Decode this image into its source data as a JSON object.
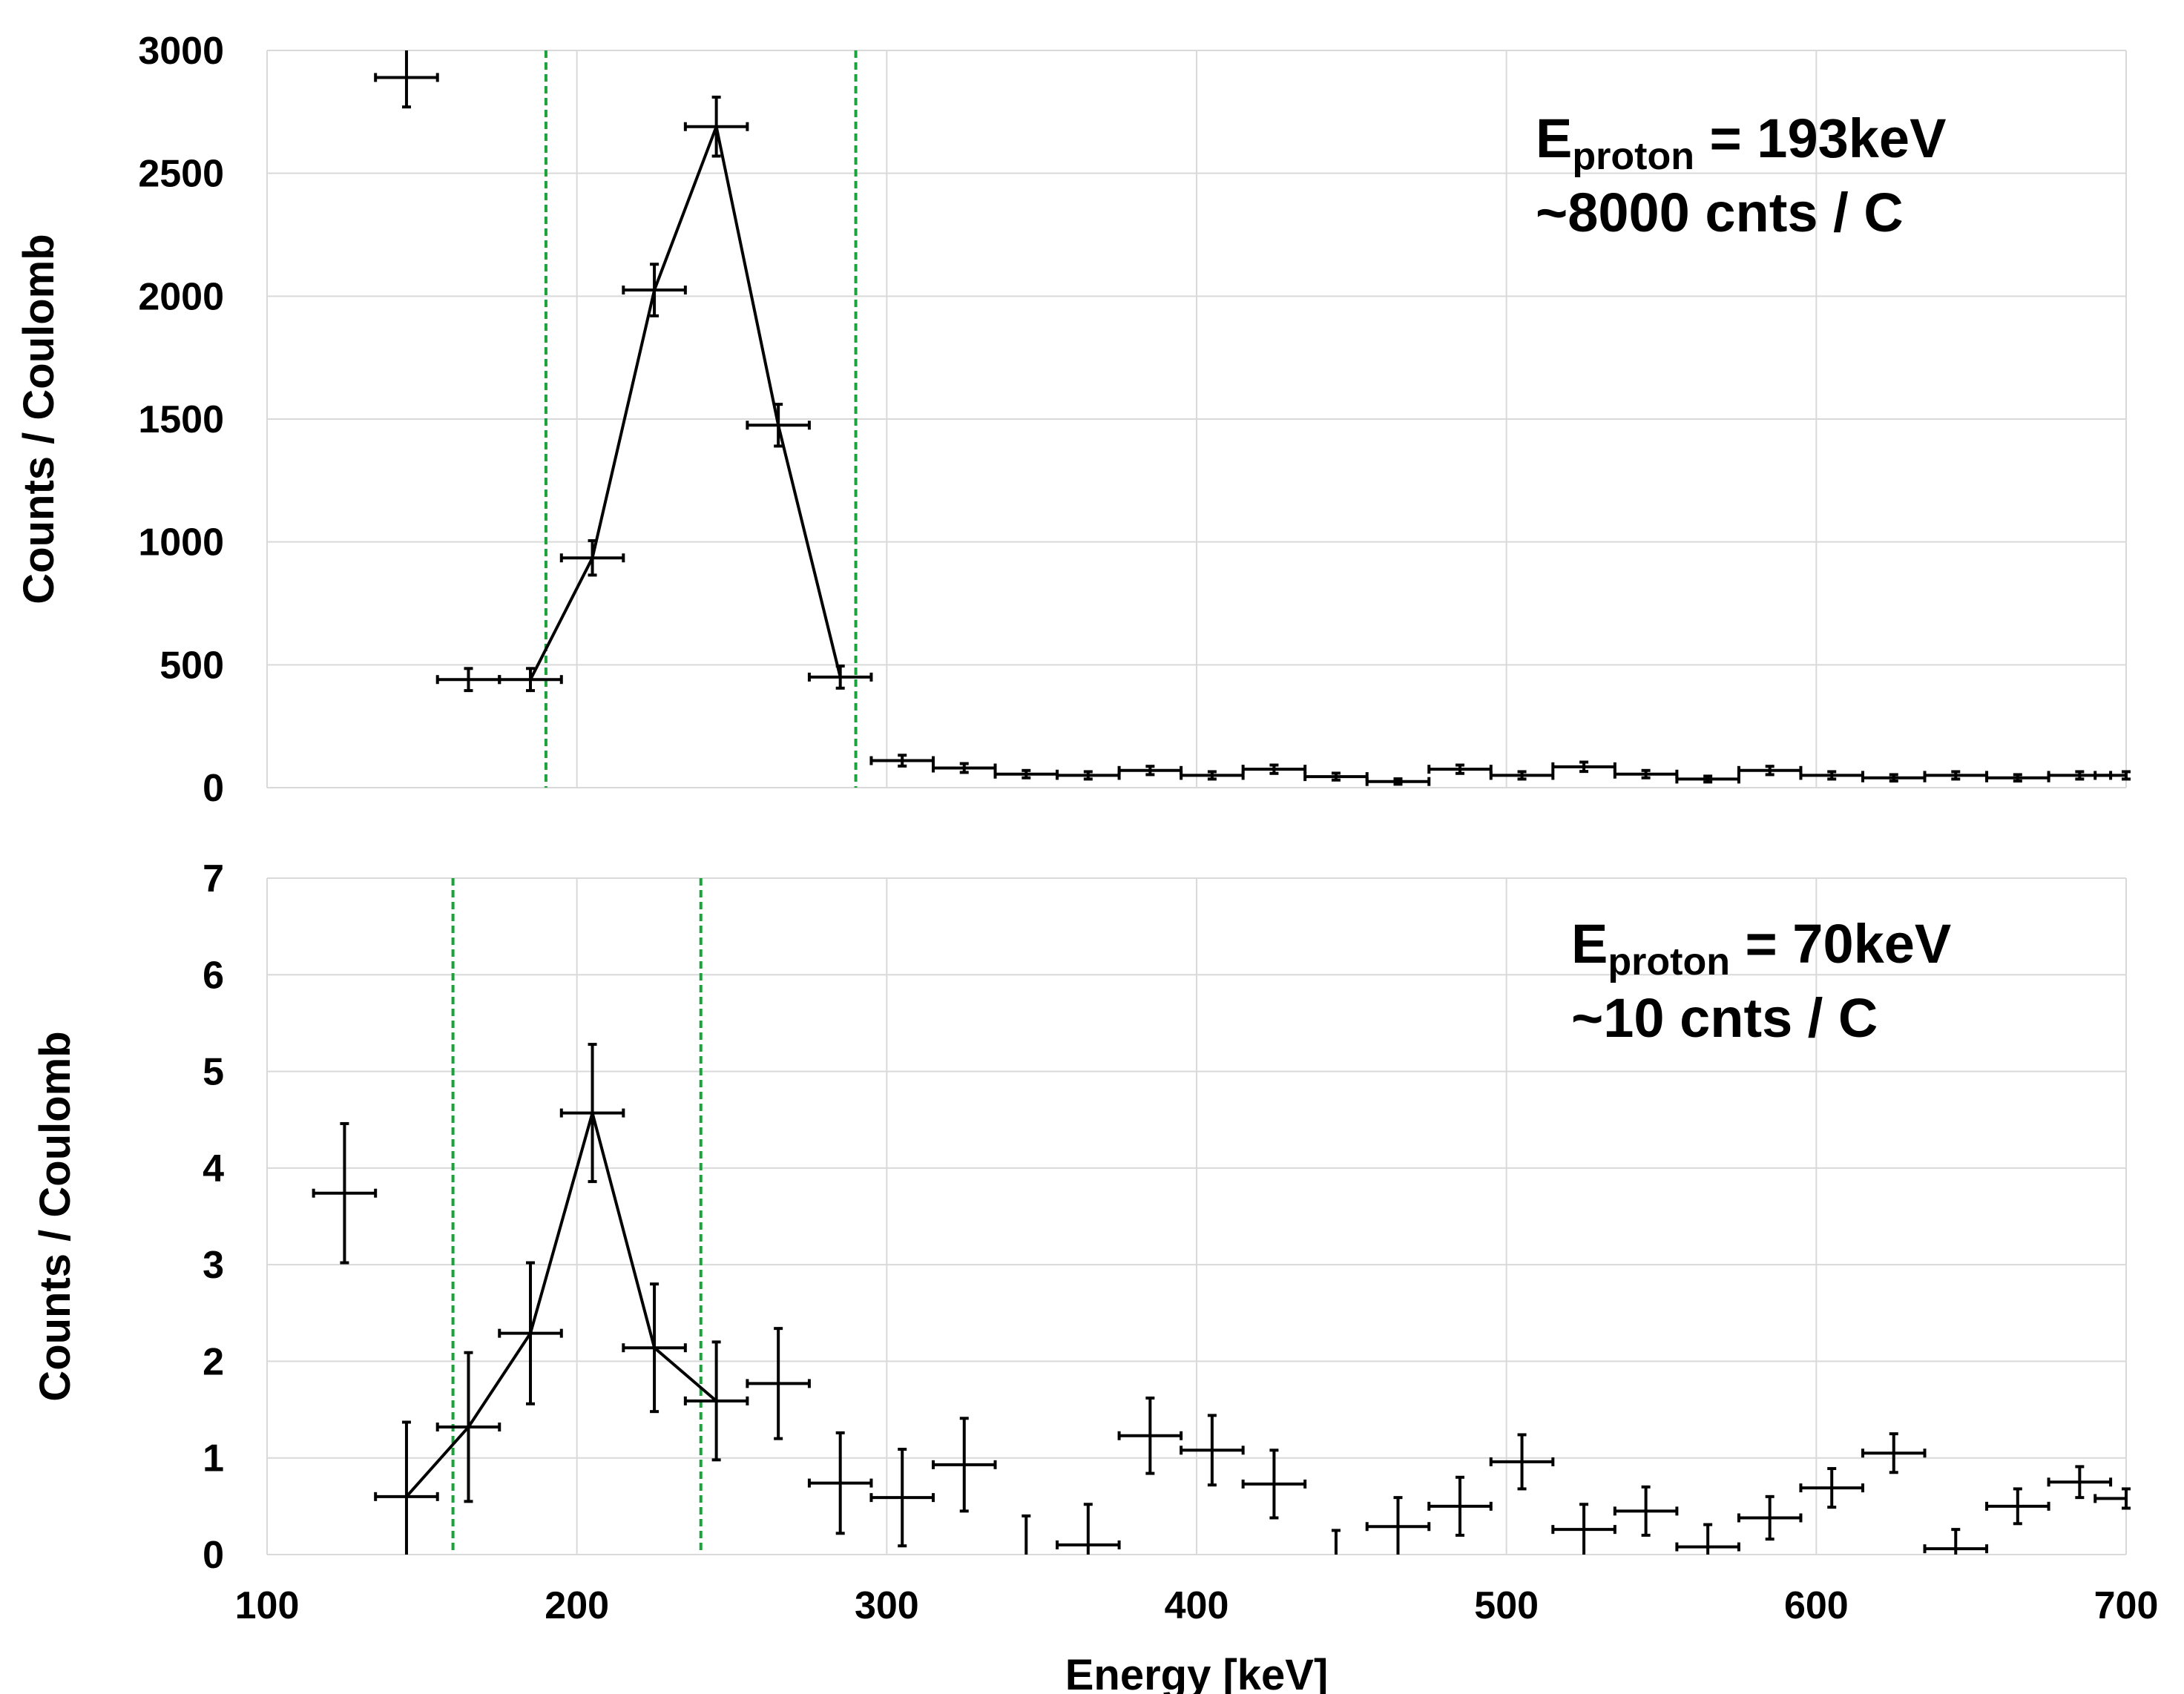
{
  "chart_data": [
    {
      "type": "scatter",
      "panel": "top",
      "xlabel": "",
      "ylabel": "Counts / Coulomb",
      "xlim": [
        100,
        700
      ],
      "ylim": [
        0,
        3000
      ],
      "x_ticks": [
        100,
        200,
        300,
        400,
        500,
        600,
        700
      ],
      "y_ticks": [
        "0",
        "500",
        "1000",
        "1500",
        "2000",
        "2500",
        "3000"
      ],
      "x_tick_labels_shown": false,
      "grid": true,
      "annotation": {
        "symbol": "E",
        "subscript": "proton",
        "value_text": " = 193keV",
        "line2": "~8000 cnts / C"
      },
      "window": {
        "color": "#1aa33a",
        "x": [
          190,
          290
        ]
      },
      "peak_line_x": [
        185,
        205,
        225,
        245,
        265,
        285
      ],
      "bin_half_width": 10,
      "series": [
        {
          "points": [
            {
              "x": 145,
              "y": 2890,
              "err": 120
            },
            {
              "x": 165,
              "y": 440,
              "err": 45
            },
            {
              "x": 185,
              "y": 440,
              "err": 45
            },
            {
              "x": 205,
              "y": 935,
              "err": 70
            },
            {
              "x": 225,
              "y": 2025,
              "err": 105
            },
            {
              "x": 245,
              "y": 2690,
              "err": 120
            },
            {
              "x": 265,
              "y": 1475,
              "err": 85
            },
            {
              "x": 285,
              "y": 450,
              "err": 45
            },
            {
              "x": 305,
              "y": 110,
              "err": 22
            },
            {
              "x": 325,
              "y": 80,
              "err": 18
            },
            {
              "x": 345,
              "y": 55,
              "err": 15
            },
            {
              "x": 365,
              "y": 50,
              "err": 15
            },
            {
              "x": 385,
              "y": 70,
              "err": 17
            },
            {
              "x": 405,
              "y": 50,
              "err": 15
            },
            {
              "x": 425,
              "y": 75,
              "err": 17
            },
            {
              "x": 445,
              "y": 45,
              "err": 14
            },
            {
              "x": 465,
              "y": 25,
              "err": 11
            },
            {
              "x": 485,
              "y": 75,
              "err": 17
            },
            {
              "x": 505,
              "y": 50,
              "err": 15
            },
            {
              "x": 525,
              "y": 85,
              "err": 19
            },
            {
              "x": 545,
              "y": 55,
              "err": 15
            },
            {
              "x": 565,
              "y": 35,
              "err": 12
            },
            {
              "x": 585,
              "y": 70,
              "err": 17
            },
            {
              "x": 605,
              "y": 50,
              "err": 15
            },
            {
              "x": 625,
              "y": 40,
              "err": 13
            },
            {
              "x": 645,
              "y": 50,
              "err": 15
            },
            {
              "x": 665,
              "y": 40,
              "err": 13
            },
            {
              "x": 685,
              "y": 50,
              "err": 15
            },
            {
              "x": 700,
              "y": 50,
              "err": 15
            }
          ]
        }
      ]
    },
    {
      "type": "scatter",
      "panel": "bottom",
      "xlabel": "Energy [keV]",
      "ylabel": "Counts / Coulomb",
      "xlim": [
        100,
        700
      ],
      "ylim": [
        0,
        7
      ],
      "x_ticks": [
        "100",
        "200",
        "300",
        "400",
        "500",
        "600",
        "700"
      ],
      "y_ticks": [
        "0",
        "1",
        "2",
        "3",
        "4",
        "5",
        "6",
        "7"
      ],
      "x_tick_labels_shown": true,
      "grid": true,
      "annotation": {
        "symbol": "E",
        "subscript": "proton",
        "value_text": " = 70keV",
        "line2": "~10 cnts / C"
      },
      "window": {
        "color": "#1aa33a",
        "x": [
          160,
          240
        ]
      },
      "peak_line_x": [
        145,
        165,
        185,
        205,
        225,
        245
      ],
      "bin_half_width": 10,
      "series": [
        {
          "points": [
            {
              "x": 125,
              "y": 3.74,
              "err": 0.72
            },
            {
              "x": 145,
              "y": 0.6,
              "err": 0.77
            },
            {
              "x": 165,
              "y": 1.32,
              "err": 0.77
            },
            {
              "x": 185,
              "y": 2.29,
              "err": 0.73
            },
            {
              "x": 205,
              "y": 4.57,
              "err": 0.71
            },
            {
              "x": 225,
              "y": 2.14,
              "err": 0.66
            },
            {
              "x": 245,
              "y": 1.59,
              "err": 0.61
            },
            {
              "x": 265,
              "y": 1.77,
              "err": 0.57
            },
            {
              "x": 285,
              "y": 0.74,
              "err": 0.52
            },
            {
              "x": 305,
              "y": 0.59,
              "err": 0.5
            },
            {
              "x": 325,
              "y": 0.93,
              "err": 0.48
            },
            {
              "x": 345,
              "y": -0.05,
              "err": 0.45
            },
            {
              "x": 365,
              "y": 0.1,
              "err": 0.42
            },
            {
              "x": 385,
              "y": 1.23,
              "err": 0.39
            },
            {
              "x": 405,
              "y": 1.08,
              "err": 0.36
            },
            {
              "x": 425,
              "y": 0.73,
              "err": 0.35
            },
            {
              "x": 445,
              "y": -0.05,
              "err": 0.3
            },
            {
              "x": 465,
              "y": 0.29,
              "err": 0.3
            },
            {
              "x": 485,
              "y": 0.5,
              "err": 0.3
            },
            {
              "x": 505,
              "y": 0.96,
              "err": 0.28
            },
            {
              "x": 525,
              "y": 0.26,
              "err": 0.26
            },
            {
              "x": 545,
              "y": 0.45,
              "err": 0.25
            },
            {
              "x": 565,
              "y": 0.08,
              "err": 0.23
            },
            {
              "x": 585,
              "y": 0.38,
              "err": 0.22
            },
            {
              "x": 605,
              "y": 0.69,
              "err": 0.2
            },
            {
              "x": 625,
              "y": 1.05,
              "err": 0.2
            },
            {
              "x": 645,
              "y": 0.06,
              "err": 0.2
            },
            {
              "x": 665,
              "y": 0.5,
              "err": 0.18
            },
            {
              "x": 685,
              "y": 0.75,
              "err": 0.16
            },
            {
              "x": 700,
              "y": 0.58,
              "err": 0.1
            }
          ]
        }
      ]
    }
  ]
}
